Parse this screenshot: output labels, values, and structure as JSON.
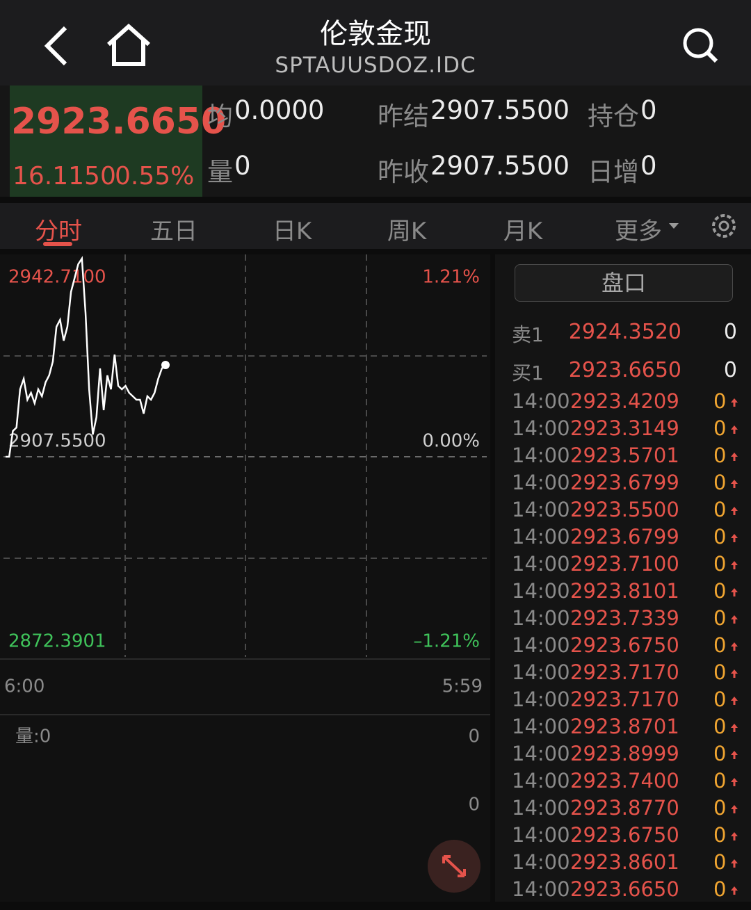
{
  "header": {
    "title": "伦敦金现",
    "subtitle": "SPTAUUSDOZ.IDC"
  },
  "quote": {
    "price": "2923.6650",
    "change": "16.1150",
    "change_pct": "0.55%",
    "fields": [
      {
        "label": "均",
        "value": "0.0000"
      },
      {
        "label": "量",
        "value": "0"
      },
      {
        "label": "昨结",
        "value": "2907.5500"
      },
      {
        "label": "昨收",
        "value": "2907.5500"
      },
      {
        "label": "持仓",
        "value": "0"
      },
      {
        "label": "日增",
        "value": "0"
      }
    ]
  },
  "tabs": [
    "分时",
    "五日",
    "日K",
    "周K",
    "月K",
    "更多"
  ],
  "chart_data": {
    "type": "line",
    "color": "#ffffff",
    "values": [
      2907.55,
      2907.55,
      2912.07,
      2912.68,
      2919.39,
      2921.23,
      2917.56,
      2918.78,
      2916.95,
      2919.39,
      2918.17,
      2920.61,
      2921.84,
      2924.28,
      2930.38,
      2931.6,
      2927.94,
      2930.38,
      2936.49,
      2938.93,
      2941.37,
      2942.35,
      2932.82,
      2919.39,
      2911.46,
      2914.51,
      2923.06,
      2915.73,
      2921.84,
      2919.39,
      2925.5,
      2920.0,
      2919.39,
      2920.0,
      2918.78,
      2918.17,
      2917.56,
      2917.56,
      2915.12,
      2918.17,
      2917.56,
      2918.78,
      2921.23,
      2923.06,
      2923.67
    ],
    "ylim": [
      2872.3901,
      2942.71
    ],
    "yticks": [
      {
        "value": 2942.71,
        "label": "2942.7100"
      },
      {
        "value": 2907.55,
        "label": "2907.5500"
      },
      {
        "value": 2872.3901,
        "label": "2872.3901"
      }
    ],
    "y2lim": [
      -1.21,
      1.21
    ],
    "y2ticks": [
      {
        "value": 1.21,
        "label": "1.21%"
      },
      {
        "value": 0,
        "label": "0.00%"
      },
      {
        "value": -1.21,
        "label": "–1.21%"
      }
    ],
    "x_labels": [
      "6:00",
      "5:59"
    ]
  },
  "volume": {
    "label": "量:0",
    "ticks": [
      "0",
      "0"
    ]
  },
  "order_book": {
    "title": "盘口",
    "levels": [
      {
        "side": "卖1",
        "price": "2924.3520",
        "volume": "0"
      },
      {
        "side": "买1",
        "price": "2923.6650",
        "volume": "0"
      }
    ],
    "trades": [
      {
        "time": "14:00",
        "price": "2923.4209",
        "volume": "0"
      },
      {
        "time": "14:00",
        "price": "2923.3149",
        "volume": "0"
      },
      {
        "time": "14:00",
        "price": "2923.5701",
        "volume": "0"
      },
      {
        "time": "14:00",
        "price": "2923.6799",
        "volume": "0"
      },
      {
        "time": "14:00",
        "price": "2923.5500",
        "volume": "0"
      },
      {
        "time": "14:00",
        "price": "2923.6799",
        "volume": "0"
      },
      {
        "time": "14:00",
        "price": "2923.7100",
        "volume": "0"
      },
      {
        "time": "14:00",
        "price": "2923.8101",
        "volume": "0"
      },
      {
        "time": "14:00",
        "price": "2923.7339",
        "volume": "0"
      },
      {
        "time": "14:00",
        "price": "2923.6750",
        "volume": "0"
      },
      {
        "time": "14:00",
        "price": "2923.7170",
        "volume": "0"
      },
      {
        "time": "14:00",
        "price": "2923.7170",
        "volume": "0"
      },
      {
        "time": "14:00",
        "price": "2923.8701",
        "volume": "0"
      },
      {
        "time": "14:00",
        "price": "2923.8999",
        "volume": "0"
      },
      {
        "time": "14:00",
        "price": "2923.7400",
        "volume": "0"
      },
      {
        "time": "14:00",
        "price": "2923.8770",
        "volume": "0"
      },
      {
        "time": "14:00",
        "price": "2923.6750",
        "volume": "0"
      },
      {
        "time": "14:00",
        "price": "2923.8601",
        "volume": "0"
      },
      {
        "time": "14:00",
        "price": "2923.6650",
        "volume": "0"
      }
    ]
  }
}
